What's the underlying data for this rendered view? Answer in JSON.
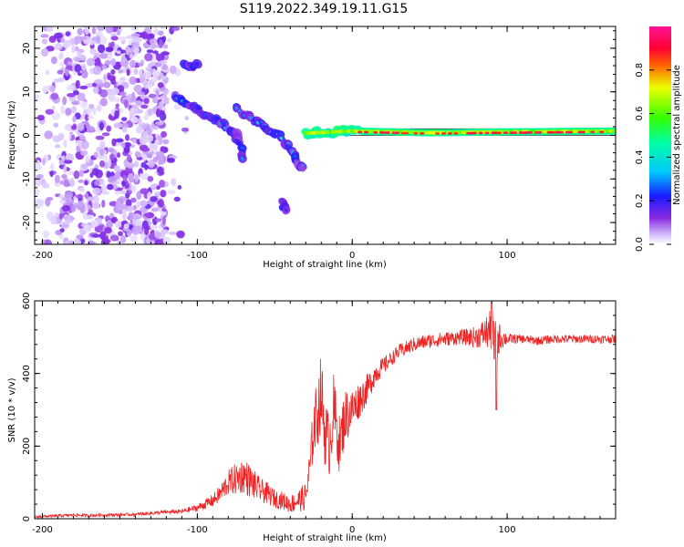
{
  "title": "S119.2022.349.19.11.G15",
  "colors": {
    "snr_line": "#ee2222",
    "ridge_scale": [
      "#ffffff",
      "#ccaaff",
      "#7a1fd6",
      "#1010e0",
      "#00c8ff",
      "#00ff40",
      "#ffff00",
      "#ff0000",
      "#ff1493"
    ]
  },
  "chart_data": [
    {
      "type": "heatmap",
      "title": "S119.2022.349.19.11.G15",
      "xlabel": "Height of straight line (km)",
      "ylabel": "Frequency (Hz)",
      "xlim": [
        -205,
        170
      ],
      "ylim": [
        -25,
        25
      ],
      "xticks": [
        "-200",
        "-100",
        "0",
        "100"
      ],
      "xtick_values": [
        -200,
        -100,
        0,
        100
      ],
      "yticks": [
        "-20",
        "-10",
        "0",
        "10",
        "20"
      ],
      "ytick_values": [
        -20,
        -10,
        0,
        10,
        20
      ],
      "colorbar": {
        "label": "Normalized spectral amplitude",
        "range": [
          0,
          1
        ],
        "ticks": [
          "0.0",
          "0.2",
          "0.4",
          "0.6",
          "0.8"
        ],
        "tick_values": [
          0.0,
          0.2,
          0.4,
          0.6,
          0.8
        ]
      },
      "features": [
        {
          "name": "noise",
          "x_range": [
            -205,
            -120
          ],
          "y_range": [
            -25,
            25
          ],
          "amplitude": 0.12
        },
        {
          "name": "diagonal-branch-1",
          "points": [
            [
              -115,
              9
            ],
            [
              -100,
              6
            ],
            [
              -85,
              3
            ],
            [
              -75,
              0
            ],
            [
              -70,
              -5
            ]
          ],
          "amplitude": 0.35
        },
        {
          "name": "diagonal-branch-2",
          "points": [
            [
              -75,
              6
            ],
            [
              -60,
              3
            ],
            [
              -48,
              0
            ],
            [
              -40,
              -3
            ],
            [
              -32,
              -8
            ]
          ],
          "amplitude": 0.4
        },
        {
          "name": "upper-blob",
          "points": [
            [
              -108,
              16
            ],
            [
              -100,
              16
            ]
          ],
          "amplitude": 0.3
        },
        {
          "name": "lower-blob",
          "points": [
            [
              -45,
              -15
            ],
            [
              -43,
              -17
            ]
          ],
          "amplitude": 0.25
        },
        {
          "name": "direct-signal",
          "points": [
            [
              -30,
              0.5
            ],
            [
              0,
              1
            ],
            [
              50,
              0.6
            ],
            [
              100,
              0.8
            ],
            [
              170,
              1
            ]
          ],
          "amplitude": 0.95
        }
      ]
    },
    {
      "type": "line",
      "xlabel": "Height of straight line (km)",
      "ylabel": "SNR (10 * v/v)",
      "xlim": [
        -205,
        170
      ],
      "ylim": [
        0,
        600
      ],
      "xticks": [
        "-200",
        "-100",
        "0",
        "100"
      ],
      "xtick_values": [
        -200,
        -100,
        0,
        100
      ],
      "yticks": [
        "0",
        "200",
        "400",
        "600"
      ],
      "ytick_values": [
        0,
        200,
        400,
        600
      ],
      "series": [
        {
          "x": [
            -205,
            -190,
            -180,
            -170,
            -160,
            -150,
            -140,
            -130,
            -120,
            -110,
            -105,
            -100,
            -95,
            -90,
            -85,
            -80,
            -75,
            -70,
            -65,
            -60,
            -55,
            -50,
            -45,
            -40,
            -35,
            -30,
            -27,
            -25,
            -22,
            -20,
            -18,
            -15,
            -12,
            -10,
            -8,
            -5,
            0,
            5,
            10,
            15,
            20,
            25,
            30,
            40,
            50,
            60,
            70,
            80,
            85,
            90,
            92,
            95,
            100,
            110,
            120,
            130,
            140,
            150,
            160,
            170
          ],
          "y": [
            5,
            8,
            10,
            9,
            10,
            11,
            12,
            15,
            18,
            20,
            25,
            30,
            40,
            50,
            70,
            100,
            110,
            120,
            100,
            80,
            70,
            55,
            50,
            40,
            50,
            60,
            150,
            250,
            300,
            350,
            250,
            200,
            300,
            250,
            200,
            280,
            300,
            330,
            360,
            400,
            420,
            440,
            460,
            480,
            490,
            495,
            500,
            500,
            510,
            520,
            460,
            500,
            495,
            495,
            490,
            495,
            495,
            495,
            495,
            495
          ],
          "amplitude_noise": [
            3,
            4,
            4,
            4,
            4,
            4,
            4,
            5,
            5,
            6,
            8,
            10,
            14,
            18,
            25,
            35,
            45,
            50,
            45,
            35,
            30,
            25,
            25,
            25,
            30,
            40,
            60,
            80,
            100,
            110,
            100,
            90,
            100,
            90,
            80,
            80,
            60,
            50,
            40,
            30,
            25,
            20,
            20,
            20,
            20,
            20,
            20,
            30,
            40,
            60,
            90,
            40,
            15,
            12,
            12,
            12,
            12,
            12,
            12,
            12
          ]
        }
      ]
    }
  ]
}
